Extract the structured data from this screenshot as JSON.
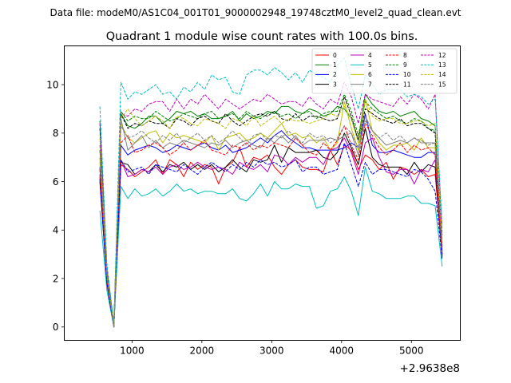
{
  "chart_data": {
    "type": "line",
    "suptitle": "Data file: modeM0/AS1C04_001T01_9000002948_19748cztM0_level2_quad_clean.evt",
    "title": "Quadrant 1 module wise count rates with 100.0s bins.",
    "xlabel": "",
    "ylabel": "",
    "x_offset_label": "+2.9638e8",
    "xlim": [
      30,
      5700
    ],
    "ylim": [
      -0.55,
      11.6
    ],
    "x_ticks": [
      1000,
      2000,
      3000,
      4000,
      5000
    ],
    "x_tick_labels": [
      "1000",
      "2000",
      "3000",
      "4000",
      "5000"
    ],
    "y_ticks": [
      0,
      2,
      4,
      6,
      8,
      10
    ],
    "y_tick_labels": [
      "0",
      "2",
      "4",
      "6",
      "8",
      "10"
    ],
    "grid": false,
    "legend_position": "top-right",
    "legend_columns": 4,
    "x": [
      540,
      640,
      740,
      840,
      940,
      1040,
      1140,
      1240,
      1340,
      1440,
      1540,
      1640,
      1740,
      1840,
      1940,
      2040,
      2140,
      2240,
      2340,
      2440,
      2540,
      2640,
      2740,
      2840,
      2940,
      3040,
      3140,
      3240,
      3340,
      3440,
      3540,
      3640,
      3740,
      3840,
      3940,
      4040,
      4140,
      4240,
      4340,
      4440,
      4540,
      4640,
      4740,
      4840,
      4940,
      5040,
      5140,
      5240,
      5340,
      5440
    ],
    "series": [
      {
        "name": "0",
        "color": "#ff0000",
        "dash": "solid",
        "values": [
          6.2,
          1.8,
          0.0,
          6.7,
          6.5,
          6.2,
          6.4,
          6.6,
          6.9,
          6.3,
          6.9,
          6.7,
          6.2,
          6.8,
          6.5,
          6.7,
          6.6,
          5.9,
          6.6,
          6.8,
          7.4,
          6.6,
          7.0,
          6.9,
          7.1,
          6.6,
          6.3,
          6.7,
          6.9,
          6.6,
          6.5,
          6.5,
          6.4,
          7.3,
          6.7,
          7.5,
          7.3,
          6.5,
          7.1,
          6.9,
          6.5,
          6.8,
          6.1,
          6.6,
          6.5,
          6.3,
          6.5,
          6.2,
          6.3,
          3.0
        ]
      },
      {
        "name": "1",
        "color": "#008000",
        "dash": "solid",
        "values": [
          7.3,
          2.2,
          0.1,
          8.8,
          8.3,
          8.2,
          8.4,
          8.7,
          8.7,
          8.4,
          8.6,
          8.9,
          8.8,
          8.9,
          8.7,
          8.8,
          8.6,
          8.6,
          8.7,
          8.9,
          8.5,
          8.8,
          8.6,
          8.7,
          8.9,
          8.8,
          9.1,
          9.1,
          8.9,
          8.8,
          9.0,
          8.9,
          8.7,
          8.8,
          9.1,
          9.0,
          8.6,
          7.7,
          9.6,
          9.2,
          8.9,
          8.8,
          8.9,
          8.7,
          8.8,
          8.9,
          8.6,
          8.5,
          8.3,
          3.3
        ]
      },
      {
        "name": "2",
        "color": "#0000ff",
        "dash": "solid",
        "values": [
          6.6,
          2.0,
          0.0,
          7.5,
          7.1,
          7.3,
          7.4,
          7.5,
          7.4,
          7.2,
          7.3,
          7.5,
          7.4,
          7.3,
          7.5,
          7.6,
          7.4,
          7.3,
          7.5,
          7.2,
          7.3,
          7.4,
          7.6,
          7.8,
          7.6,
          7.9,
          8.1,
          7.8,
          7.6,
          7.4,
          7.4,
          7.3,
          7.3,
          7.3,
          7.3,
          7.4,
          7.6,
          7.4,
          8.8,
          7.5,
          7.2,
          7.2,
          7.3,
          7.2,
          7.1,
          7.0,
          7.0,
          7.2,
          7.2,
          3.2
        ]
      },
      {
        "name": "3",
        "color": "#000000",
        "dash": "solid",
        "values": [
          6.0,
          1.8,
          0.0,
          6.8,
          6.7,
          6.3,
          6.5,
          6.4,
          6.7,
          6.4,
          6.7,
          6.6,
          6.8,
          6.5,
          6.7,
          6.5,
          6.7,
          6.4,
          6.6,
          6.9,
          6.6,
          6.4,
          6.9,
          6.8,
          6.9,
          7.5,
          6.8,
          7.4,
          7.2,
          7.2,
          7.2,
          7.3,
          7.0,
          6.9,
          7.2,
          8.0,
          7.4,
          6.7,
          8.2,
          7.0,
          6.7,
          6.6,
          6.6,
          6.6,
          6.3,
          6.8,
          6.4,
          6.7,
          6.6,
          2.9
        ]
      },
      {
        "name": "4",
        "color": "#bf00bf",
        "dash": "solid",
        "values": [
          6.3,
          1.9,
          0.0,
          6.9,
          6.2,
          6.3,
          6.5,
          6.4,
          6.6,
          6.3,
          6.6,
          6.7,
          6.5,
          6.6,
          6.8,
          6.6,
          6.5,
          6.6,
          6.5,
          6.3,
          6.8,
          6.6,
          6.5,
          6.7,
          6.4,
          7.1,
          7.0,
          6.7,
          7.0,
          6.8,
          7.0,
          7.0,
          6.7,
          7.3,
          7.4,
          7.8,
          7.2,
          6.3,
          7.6,
          7.8,
          7.0,
          6.4,
          6.3,
          6.5,
          6.5,
          5.9,
          6.5,
          6.4,
          6.9,
          3.0
        ]
      },
      {
        "name": "5",
        "color": "#00bfbf",
        "dash": "solid",
        "values": [
          4.8,
          1.5,
          0.0,
          5.8,
          5.3,
          5.7,
          5.4,
          5.5,
          5.7,
          5.4,
          5.6,
          5.9,
          5.6,
          5.7,
          5.5,
          5.6,
          5.6,
          5.5,
          5.5,
          5.7,
          5.3,
          5.2,
          5.5,
          5.9,
          5.4,
          6.0,
          5.7,
          5.7,
          5.9,
          5.8,
          5.8,
          4.9,
          5.0,
          5.6,
          5.7,
          6.2,
          5.6,
          4.6,
          6.6,
          5.6,
          5.5,
          5.3,
          5.3,
          5.3,
          5.4,
          5.4,
          5.1,
          5.1,
          5.0,
          2.5
        ]
      },
      {
        "name": "6",
        "color": "#bfbf00",
        "dash": "solid",
        "values": [
          6.8,
          2.0,
          0.0,
          8.4,
          7.8,
          7.6,
          7.8,
          8.0,
          8.1,
          7.6,
          8.0,
          7.8,
          7.9,
          7.8,
          7.7,
          7.6,
          7.9,
          7.3,
          7.8,
          7.9,
          8.0,
          7.7,
          7.8,
          8.0,
          7.8,
          8.1,
          8.4,
          7.9,
          8.0,
          7.8,
          7.9,
          7.6,
          7.8,
          7.3,
          7.6,
          9.3,
          8.2,
          7.3,
          9.4,
          8.1,
          7.6,
          7.3,
          7.5,
          7.5,
          7.6,
          7.3,
          7.8,
          7.4,
          7.4,
          3.1
        ]
      },
      {
        "name": "7",
        "color": "#808080",
        "dash": "solid",
        "values": [
          7.0,
          2.1,
          0.0,
          8.6,
          7.3,
          7.6,
          7.9,
          7.4,
          7.7,
          7.4,
          7.6,
          7.5,
          7.7,
          7.6,
          7.5,
          7.4,
          7.6,
          7.5,
          7.7,
          7.4,
          7.6,
          7.7,
          7.5,
          7.4,
          7.8,
          7.6,
          7.9,
          7.6,
          7.9,
          7.5,
          7.7,
          7.7,
          7.7,
          7.8,
          7.7,
          7.9,
          8.0,
          7.1,
          8.7,
          8.1,
          7.8,
          7.5,
          7.6,
          7.7,
          7.6,
          7.8,
          7.6,
          7.6,
          7.6,
          3.1
        ]
      },
      {
        "name": "8",
        "color": "#ff0000",
        "dash": "dashed",
        "values": [
          6.5,
          1.9,
          0.0,
          7.6,
          7.9,
          7.2,
          7.3,
          7.5,
          7.6,
          7.4,
          7.1,
          7.3,
          7.6,
          7.3,
          7.5,
          7.7,
          7.3,
          7.2,
          7.1,
          7.5,
          7.4,
          7.6,
          7.3,
          7.5,
          7.4,
          7.6,
          7.5,
          7.4,
          7.8,
          7.5,
          7.2,
          7.1,
          7.6,
          7.3,
          7.7,
          8.3,
          7.5,
          6.9,
          8.4,
          7.9,
          7.4,
          7.1,
          7.3,
          7.6,
          7.2,
          7.5,
          7.3,
          7.4,
          7.1,
          3.0
        ]
      },
      {
        "name": "9",
        "color": "#008000",
        "dash": "dashed",
        "values": [
          8.5,
          2.4,
          0.1,
          8.9,
          8.5,
          8.7,
          8.6,
          8.6,
          8.9,
          8.7,
          8.5,
          8.6,
          8.8,
          8.7,
          8.6,
          8.8,
          8.9,
          8.6,
          8.7,
          8.8,
          8.6,
          8.9,
          8.7,
          8.6,
          8.8,
          8.9,
          8.7,
          8.8,
          8.6,
          8.8,
          8.9,
          8.6,
          8.8,
          8.9,
          8.9,
          9.6,
          8.9,
          7.9,
          9.3,
          9.0,
          8.8,
          8.6,
          8.7,
          8.5,
          8.4,
          8.6,
          8.5,
          8.2,
          8.1,
          3.6
        ]
      },
      {
        "name": "10",
        "color": "#0000ff",
        "dash": "dashed",
        "values": [
          6.1,
          1.8,
          0.0,
          6.9,
          6.4,
          6.5,
          6.6,
          6.3,
          6.7,
          6.6,
          6.5,
          6.4,
          6.7,
          6.5,
          6.3,
          6.6,
          6.8,
          6.6,
          6.4,
          6.7,
          6.5,
          6.8,
          6.6,
          6.9,
          6.7,
          6.8,
          6.6,
          6.7,
          6.9,
          6.4,
          6.6,
          6.6,
          6.3,
          6.4,
          6.5,
          7.6,
          6.7,
          5.8,
          6.8,
          6.3,
          6.5,
          6.5,
          6.4,
          6.3,
          6.2,
          6.5,
          6.4,
          6.1,
          5.6,
          2.8
        ]
      },
      {
        "name": "11",
        "color": "#000000",
        "dash": "dashed",
        "values": [
          8.2,
          2.3,
          0.1,
          8.8,
          8.2,
          8.4,
          8.3,
          8.5,
          8.4,
          8.4,
          8.2,
          8.6,
          8.5,
          8.3,
          8.6,
          8.7,
          8.5,
          8.4,
          8.8,
          8.5,
          8.3,
          8.5,
          8.7,
          8.8,
          8.7,
          8.9,
          8.6,
          8.5,
          8.8,
          8.5,
          8.7,
          8.7,
          8.6,
          8.5,
          8.6,
          9.5,
          8.7,
          7.7,
          9.0,
          8.8,
          8.6,
          8.5,
          8.4,
          8.6,
          8.3,
          8.4,
          8.4,
          8.2,
          8.0,
          3.4
        ]
      },
      {
        "name": "12",
        "color": "#bf00bf",
        "dash": "dashed",
        "values": [
          8.4,
          2.4,
          0.1,
          8.8,
          8.7,
          9.0,
          8.9,
          9.2,
          9.3,
          9.3,
          8.9,
          9.4,
          9.0,
          9.4,
          9.2,
          9.6,
          9.3,
          9.0,
          9.4,
          9.2,
          9.0,
          9.2,
          9.4,
          9.3,
          9.6,
          9.4,
          9.2,
          9.3,
          9.3,
          9.1,
          9.5,
          9.2,
          9.0,
          9.4,
          9.2,
          10.1,
          9.5,
          8.4,
          9.6,
          9.4,
          9.3,
          9.2,
          9.1,
          9.5,
          9.2,
          9.6,
          9.4,
          9.0,
          9.6,
          3.8
        ]
      },
      {
        "name": "13",
        "color": "#00bfbf",
        "dash": "dashed",
        "values": [
          9.1,
          2.6,
          0.1,
          10.1,
          9.4,
          9.7,
          9.6,
          9.8,
          10.0,
          9.6,
          9.7,
          9.4,
          9.9,
          9.7,
          10.1,
          9.8,
          10.4,
          10.2,
          10.3,
          9.7,
          9.6,
          10.4,
          10.6,
          10.6,
          10.4,
          10.7,
          10.5,
          10.2,
          10.5,
          10.1,
          10.6,
          10.4,
          10.3,
          10.1,
          10.8,
          11.1,
          10.0,
          9.0,
          10.4,
          10.0,
          9.6,
          9.8,
          9.8,
          9.8,
          9.5,
          9.6,
          9.5,
          9.2,
          9.4,
          4.2
        ]
      },
      {
        "name": "14",
        "color": "#bfbf00",
        "dash": "dashed",
        "values": [
          7.8,
          2.2,
          0.0,
          8.6,
          9.0,
          8.6,
          8.3,
          8.5,
          8.7,
          8.5,
          8.2,
          8.7,
          8.6,
          8.4,
          8.3,
          8.6,
          8.5,
          8.4,
          8.2,
          8.6,
          8.5,
          8.3,
          8.7,
          8.3,
          8.5,
          8.7,
          8.4,
          8.6,
          8.5,
          8.5,
          8.4,
          8.5,
          8.6,
          8.8,
          8.7,
          9.1,
          8.6,
          7.6,
          9.4,
          8.7,
          8.5,
          8.6,
          8.6,
          8.4,
          8.4,
          8.5,
          8.5,
          8.3,
          8.4,
          3.5
        ]
      },
      {
        "name": "15",
        "color": "#808080",
        "dash": "dashed",
        "values": [
          7.5,
          2.1,
          0.0,
          8.3,
          7.8,
          7.9,
          8.1,
          7.8,
          7.6,
          7.9,
          7.7,
          8.0,
          7.6,
          7.8,
          8.0,
          7.7,
          7.9,
          7.6,
          7.8,
          8.1,
          7.8,
          7.5,
          7.9,
          8.0,
          7.7,
          7.9,
          7.8,
          8.1,
          7.8,
          7.6,
          8.0,
          7.8,
          7.9,
          7.6,
          7.8,
          8.3,
          8.0,
          7.4,
          8.5,
          8.1,
          7.8,
          8.0,
          7.7,
          7.9,
          7.6,
          7.8,
          7.7,
          7.5,
          7.6,
          3.3
        ]
      }
    ]
  }
}
